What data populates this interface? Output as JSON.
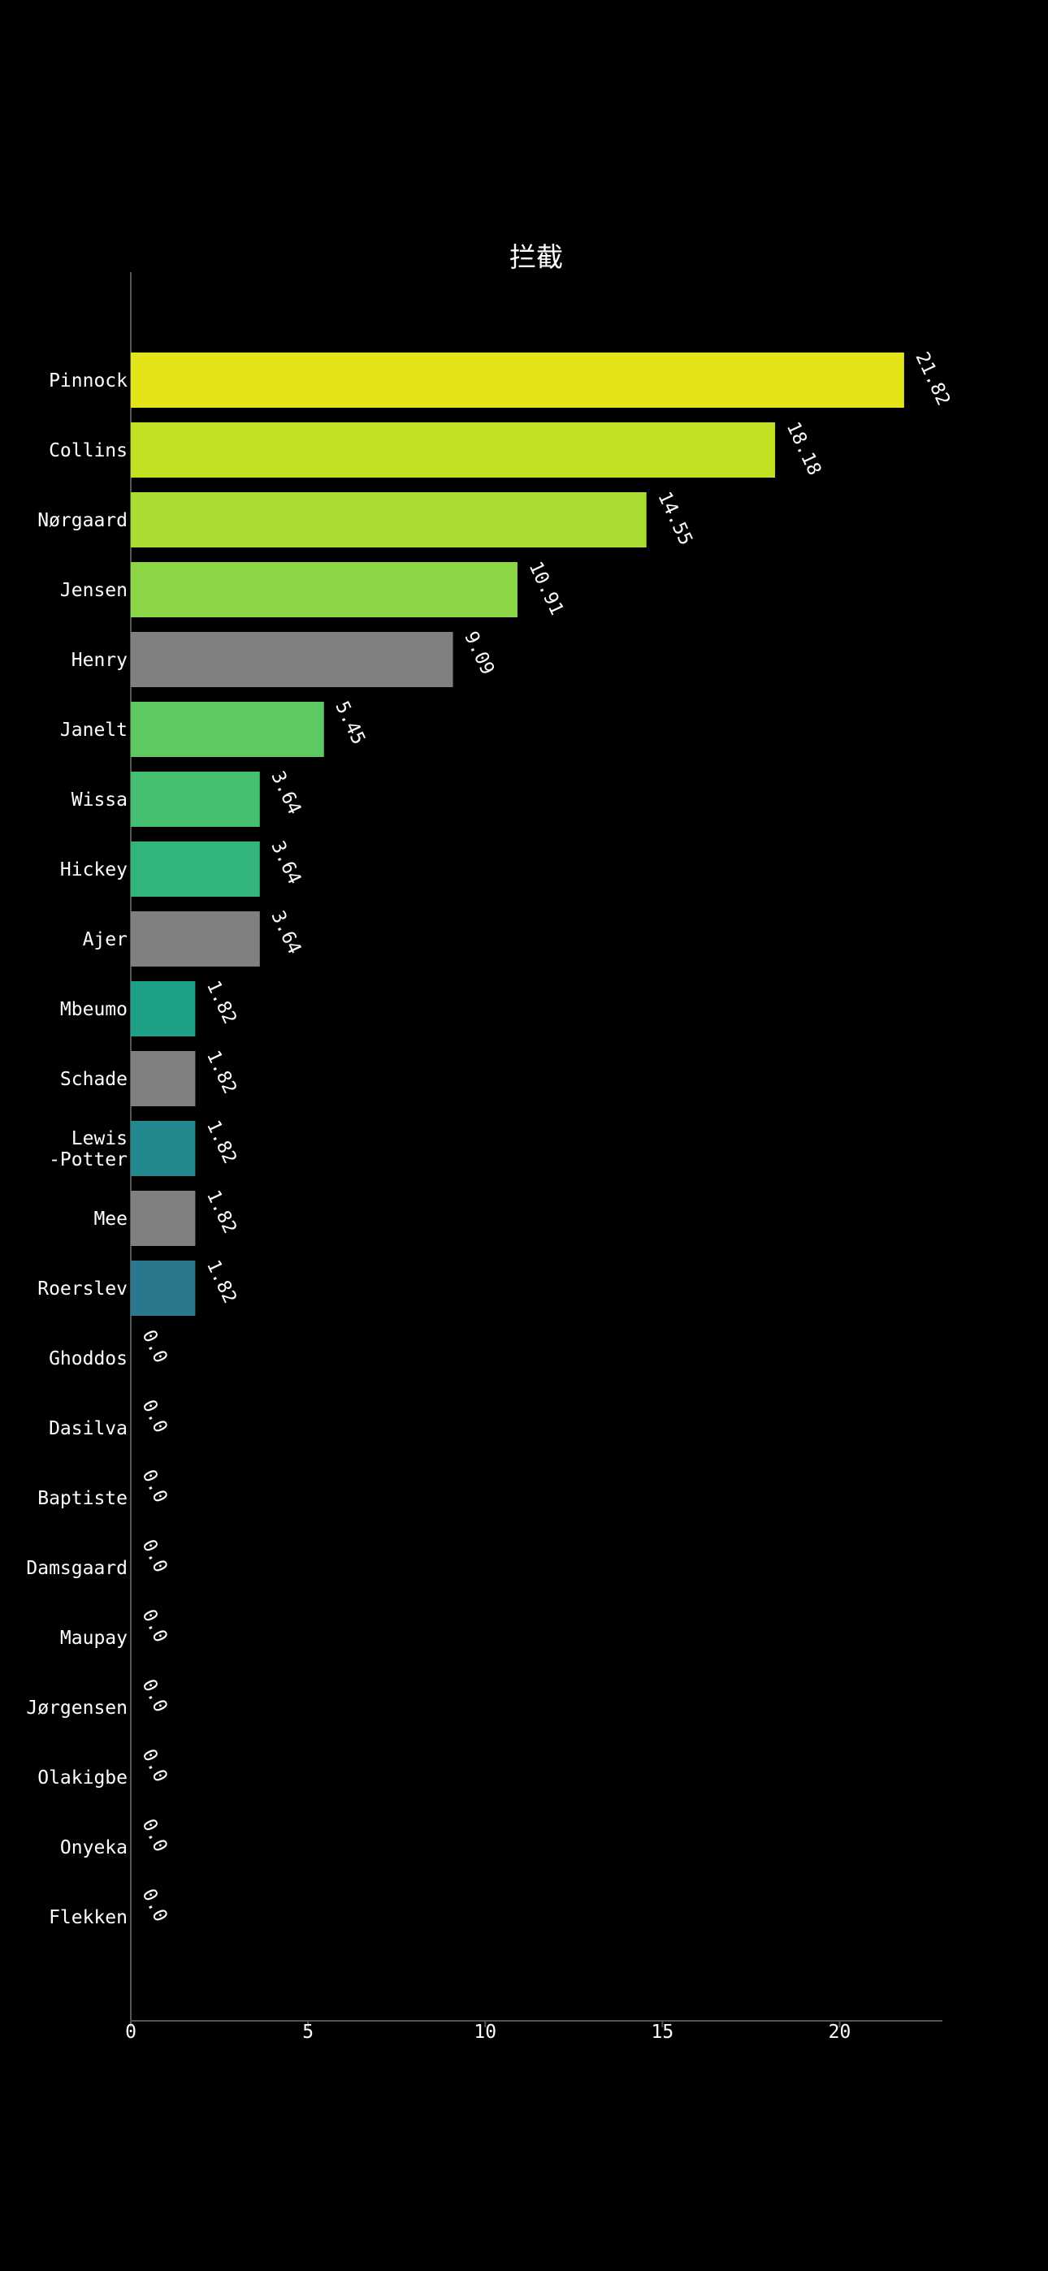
{
  "chart_data": {
    "type": "bar",
    "orientation": "horizontal",
    "title": "拦截",
    "xlabel": "",
    "ylabel": "",
    "xlim": [
      0,
      22.9
    ],
    "xticks": [
      "0",
      "5",
      "10",
      "15",
      "20"
    ],
    "grid": false,
    "categories": [
      [
        "Pinnock"
      ],
      [
        "Collins"
      ],
      [
        "Nørgaard"
      ],
      [
        "Jensen"
      ],
      [
        "Henry"
      ],
      [
        "Janelt"
      ],
      [
        "Wissa"
      ],
      [
        "Hickey"
      ],
      [
        "Ajer"
      ],
      [
        "Mbeumo"
      ],
      [
        "Schade"
      ],
      [
        "Lewis",
        "-Potter"
      ],
      [
        "Mee"
      ],
      [
        "Roerslev"
      ],
      [
        "Ghoddos"
      ],
      [
        "Dasilva"
      ],
      [
        "Baptiste"
      ],
      [
        "Damsgaard"
      ],
      [
        "Maupay"
      ],
      [
        "Jørgensen"
      ],
      [
        "Olakigbe"
      ],
      [
        "Onyeka"
      ],
      [
        "Flekken"
      ]
    ],
    "values": [
      21.82,
      18.18,
      14.55,
      10.91,
      9.09,
      5.45,
      3.64,
      3.64,
      3.64,
      1.82,
      1.82,
      1.82,
      1.82,
      1.82,
      0.0,
      0.0,
      0.0,
      0.0,
      0.0,
      0.0,
      0.0,
      0.0,
      0.0
    ],
    "value_labels": [
      "21.82",
      "18.18",
      "14.55",
      "10.91",
      "9.09",
      "5.45",
      "3.64",
      "3.64",
      "3.64",
      "1.82",
      "1.82",
      "1.82",
      "1.82",
      "1.82",
      "0.0",
      "0.0",
      "0.0",
      "0.0",
      "0.0",
      "0.0",
      "0.0",
      "0.0",
      "0.0"
    ],
    "colors": [
      "#e2e418",
      "#c4e022",
      "#aadc32",
      "#8dd645",
      "#808080",
      "#5ec962",
      "#44bf70",
      "#31b57b",
      "#808080",
      "#1fa188",
      "#808080",
      "#23898e",
      "#808080",
      "#2a788e",
      "#2f6c8e",
      "#355f8d",
      "#3b518b",
      "#414487",
      "#453781",
      "#482878",
      "#481a6c",
      "#470d60",
      "#440154"
    ]
  }
}
